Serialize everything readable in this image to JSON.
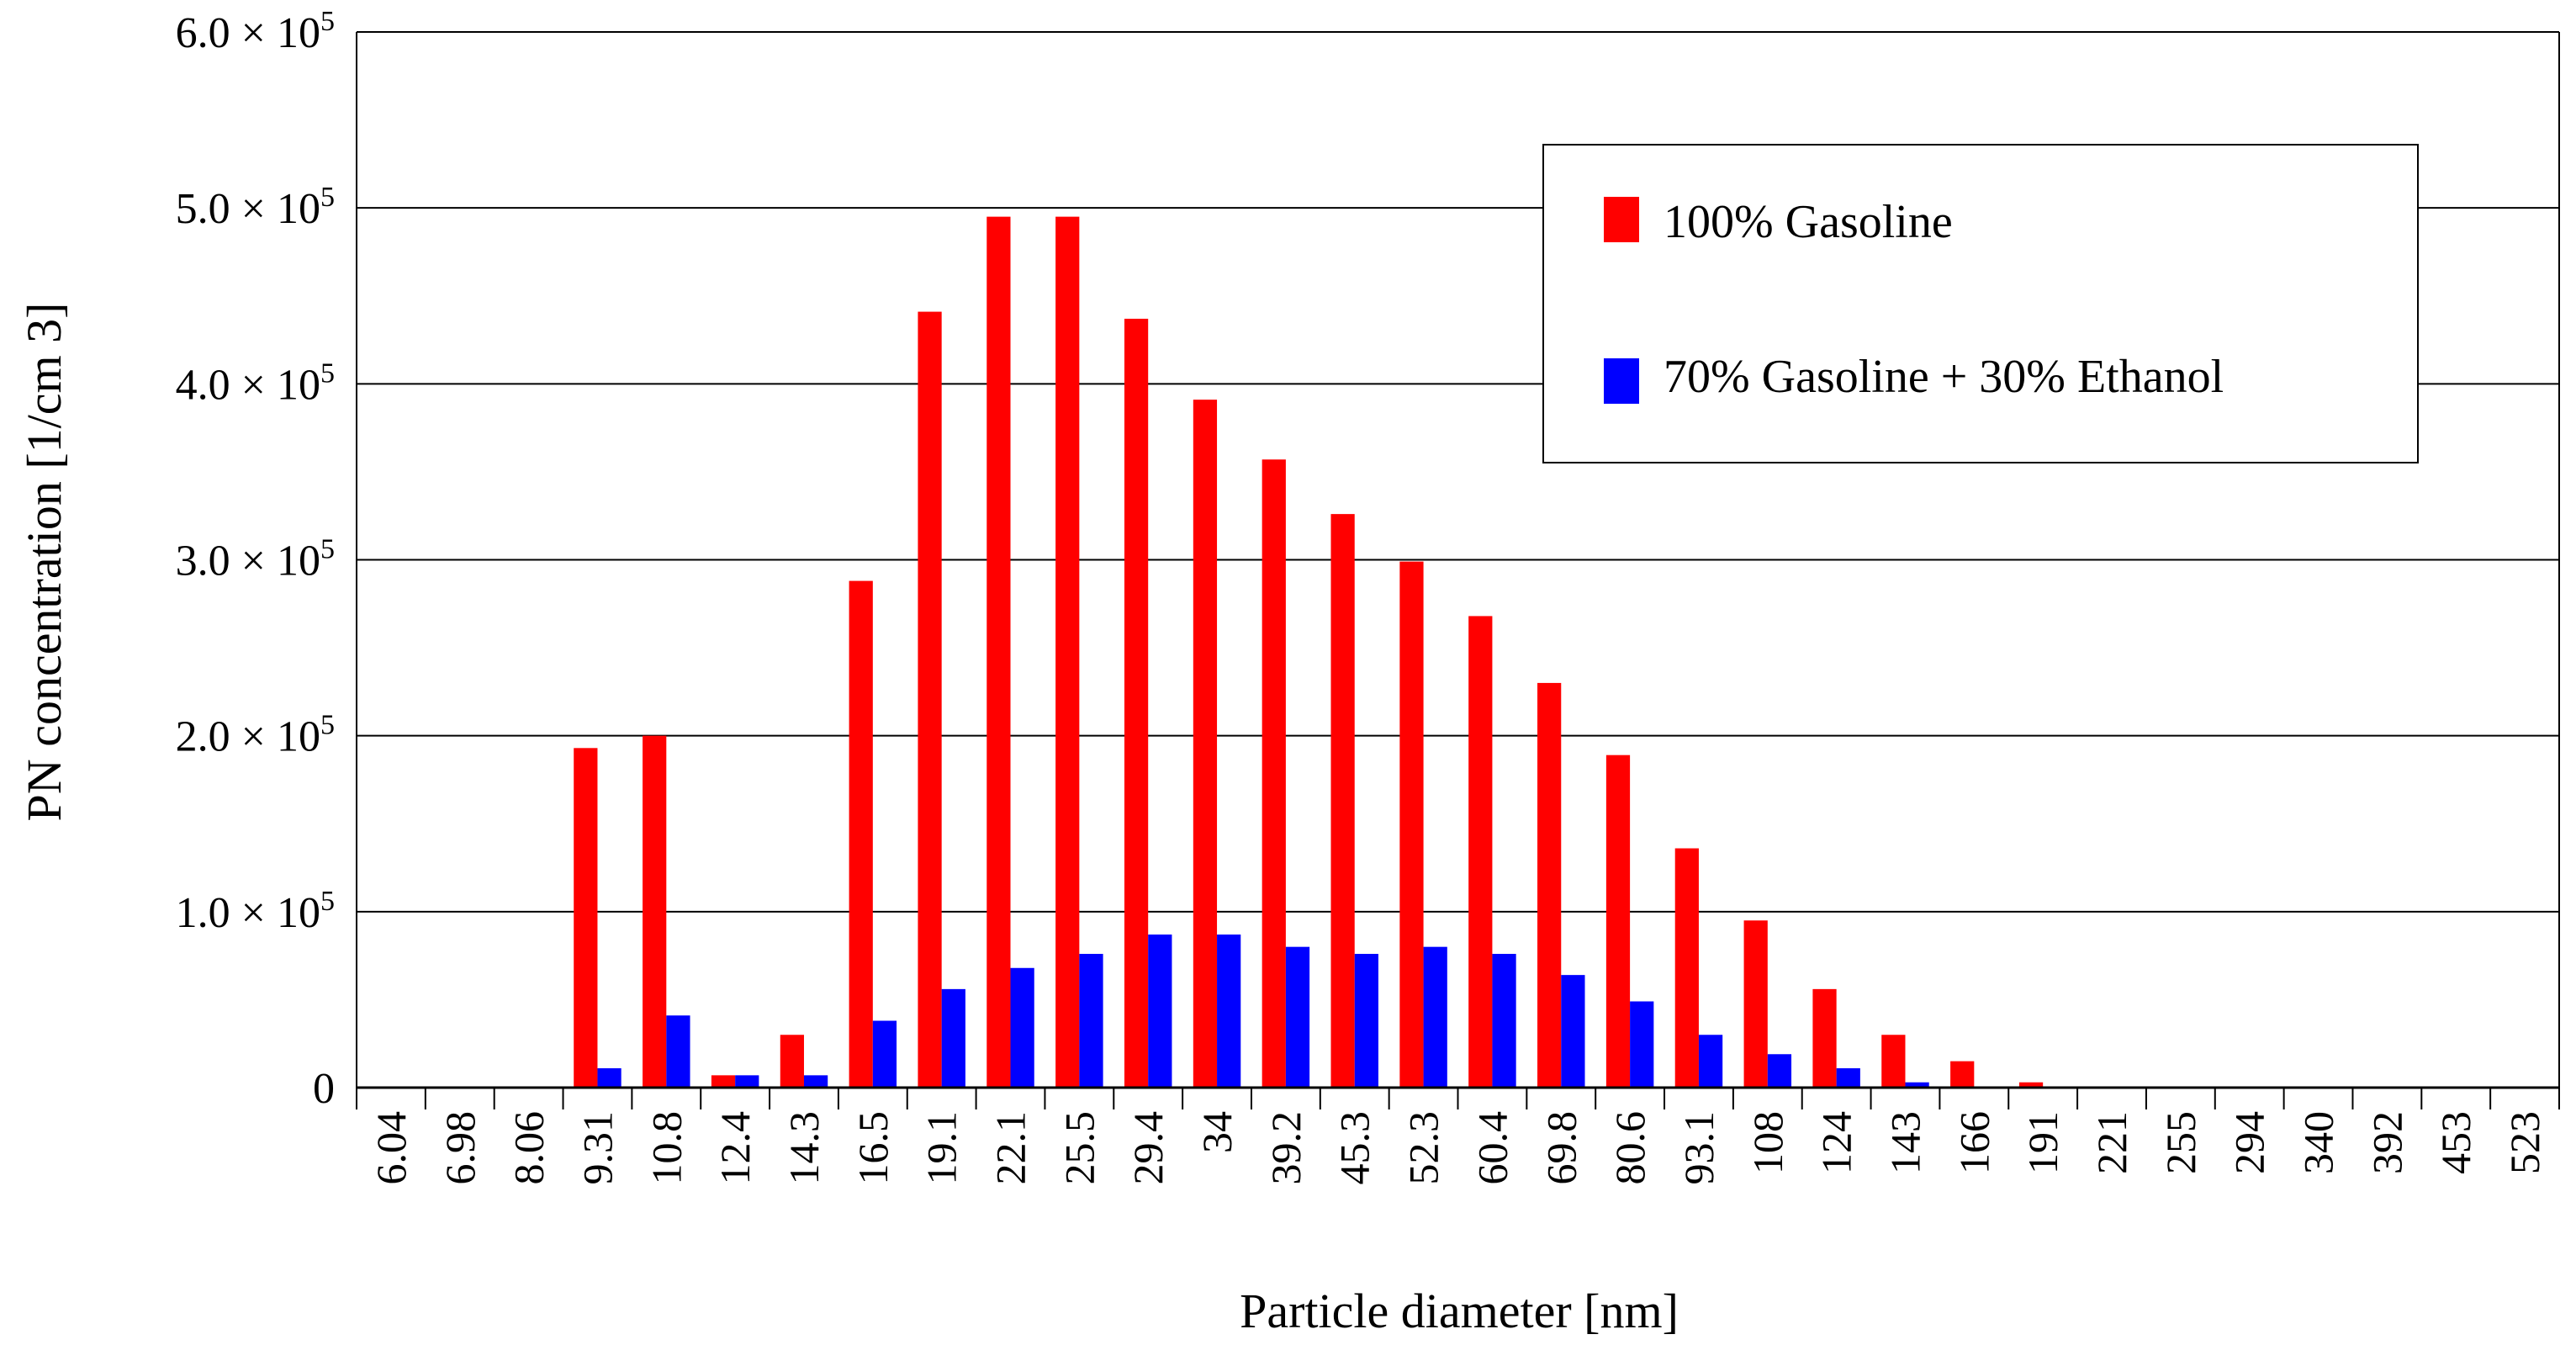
{
  "chart_data": {
    "type": "bar",
    "title": "",
    "xlabel": "Particle diameter [nm]",
    "ylabel": "PN concentration [1/cm 3]",
    "ylim": [
      0,
      600000
    ],
    "grid": true,
    "legend_position": "top-right",
    "ytick_labels": [
      {
        "coef": "0",
        "exp": ""
      },
      {
        "coef": "1.0 × 10",
        "exp": "5"
      },
      {
        "coef": "2.0 × 10",
        "exp": "5"
      },
      {
        "coef": "3.0 × 10",
        "exp": "5"
      },
      {
        "coef": "4.0 × 10",
        "exp": "5"
      },
      {
        "coef": "5.0 × 10",
        "exp": "5"
      },
      {
        "coef": "6.0 × 10",
        "exp": "5"
      }
    ],
    "categories": [
      "6.04",
      "6.98",
      "8.06",
      "9.31",
      "10.8",
      "12.4",
      "14.3",
      "16.5",
      "19.1",
      "22.1",
      "25.5",
      "29.4",
      "34",
      "39.2",
      "45.3",
      "52.3",
      "60.4",
      "69.8",
      "80.6",
      "93.1",
      "108",
      "124",
      "143",
      "166",
      "191",
      "221",
      "255",
      "294",
      "340",
      "392",
      "453",
      "523"
    ],
    "series": [
      {
        "name": "100% Gasoline",
        "color": "#ff0000",
        "values": [
          0,
          0,
          0,
          193000,
          200000,
          7000,
          30000,
          288000,
          441000,
          495000,
          495000,
          437000,
          391000,
          357000,
          326000,
          299000,
          268000,
          230000,
          189000,
          136000,
          95000,
          56000,
          30000,
          15000,
          3000,
          0,
          0,
          0,
          0,
          0,
          0,
          0
        ]
      },
      {
        "name": "70% Gasoline + 30% Ethanol",
        "color": "#0000ff",
        "values": [
          0,
          0,
          0,
          11000,
          41000,
          7000,
          7000,
          38000,
          56000,
          68000,
          76000,
          87000,
          87000,
          80000,
          76000,
          80000,
          76000,
          64000,
          49000,
          30000,
          19000,
          11000,
          3000,
          0,
          0,
          0,
          0,
          0,
          0,
          0,
          0,
          0
        ]
      }
    ]
  }
}
